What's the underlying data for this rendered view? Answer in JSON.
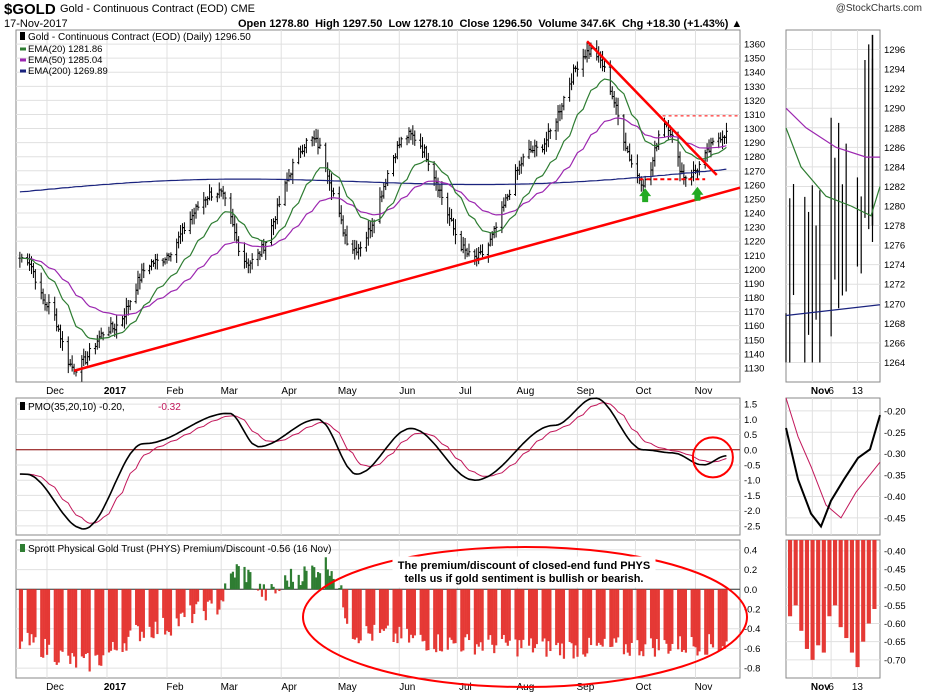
{
  "header": {
    "symbol": "$GOLD",
    "name": "Gold - Continuous Contract (EOD)",
    "exchange": "CME",
    "date": "17-Nov-2017",
    "open_label": "Open",
    "open": "1278.80",
    "high_label": "High",
    "high": "1297.50",
    "low_label": "Low",
    "low": "1278.10",
    "close_label": "Close",
    "close": "1296.50",
    "volume_label": "Volume",
    "volume": "347.6K",
    "chg_label": "Chg",
    "chg": "+18.30 (+1.43%)",
    "logo": "@StockCharts.com"
  },
  "colors": {
    "price": "#000000",
    "ema20": "#2e7d32",
    "ema50": "#9c27b0",
    "ema200": "#1a237e",
    "trendline": "#ff0000",
    "pmo_signal": "#c2185b",
    "premium_neg": "#e53935",
    "premium_pos": "#2e7d32",
    "arrow": "#22aa22",
    "grid": "#e0e0e0"
  },
  "chart_data": [
    {
      "type": "ohlc",
      "panel": "price",
      "title": "Gold - Continuous Contract (EOD) (Daily) 1296.50",
      "legend": [
        {
          "name": "EMA(20)",
          "value": "1281.86",
          "color": "#2e7d32"
        },
        {
          "name": "EMA(50)",
          "value": "1285.04",
          "color": "#9c27b0"
        },
        {
          "name": "EMA(200)",
          "value": "1269.89",
          "color": "#1a237e"
        }
      ],
      "ylim": [
        1120,
        1370
      ],
      "yticks": [
        1130,
        1140,
        1150,
        1160,
        1170,
        1180,
        1190,
        1200,
        1210,
        1220,
        1230,
        1240,
        1250,
        1260,
        1270,
        1280,
        1290,
        1300,
        1310,
        1320,
        1330,
        1340,
        1350,
        1360
      ],
      "xlabels": [
        "Dec",
        "2017",
        "Feb",
        "Mar",
        "Apr",
        "May",
        "Jun",
        "Jul",
        "Aug",
        "Sep",
        "Oct",
        "Nov"
      ],
      "key_points": [
        {
          "date": "2016-11-20",
          "close": 1208
        },
        {
          "date": "2016-12-01",
          "close": 1175
        },
        {
          "date": "2016-12-15",
          "close": 1130
        },
        {
          "date": "2017-01-03",
          "close": 1158
        },
        {
          "date": "2017-01-25",
          "close": 1205
        },
        {
          "date": "2017-02-27",
          "close": 1255
        },
        {
          "date": "2017-03-15",
          "close": 1205
        },
        {
          "date": "2017-04-17",
          "close": 1292
        },
        {
          "date": "2017-05-09",
          "close": 1215
        },
        {
          "date": "2017-06-06",
          "close": 1295
        },
        {
          "date": "2017-07-10",
          "close": 1208
        },
        {
          "date": "2017-08-10",
          "close": 1285
        },
        {
          "date": "2017-09-08",
          "close": 1355
        },
        {
          "date": "2017-10-06",
          "close": 1262
        },
        {
          "date": "2017-10-16",
          "close": 1305
        },
        {
          "date": "2017-10-27",
          "close": 1266
        },
        {
          "date": "2017-11-17",
          "close": 1296.5
        }
      ]
    },
    {
      "type": "ohlc",
      "panel": "price-zoom",
      "ylim": [
        1262,
        1298
      ],
      "yticks": [
        1264,
        1266,
        1268,
        1270,
        1272,
        1274,
        1276,
        1278,
        1280,
        1282,
        1284,
        1286,
        1288,
        1290,
        1292,
        1294,
        1296
      ],
      "xlabels": [
        "Nov",
        "6",
        "13"
      ]
    },
    {
      "type": "line",
      "panel": "pmo",
      "title": "PMO(35,20,10)",
      "value1": "-0.20",
      "value2": "-0.32",
      "ylim": [
        -2.8,
        1.7
      ],
      "yticks": [
        "1.5",
        "1.0",
        "0.5",
        "0.0",
        "-0.5",
        "-1.0",
        "-1.5",
        "-2.0",
        "-2.5"
      ],
      "key_points": [
        {
          "date": "2016-11-20",
          "pmo": -0.8
        },
        {
          "date": "2016-12-20",
          "pmo": -2.6
        },
        {
          "date": "2017-01-20",
          "pmo": 0.2
        },
        {
          "date": "2017-03-05",
          "pmo": 1.2
        },
        {
          "date": "2017-03-20",
          "pmo": 0.1
        },
        {
          "date": "2017-04-20",
          "pmo": 1.0
        },
        {
          "date": "2017-05-10",
          "pmo": -0.8
        },
        {
          "date": "2017-06-07",
          "pmo": 0.7
        },
        {
          "date": "2017-07-10",
          "pmo": -1.0
        },
        {
          "date": "2017-08-20",
          "pmo": 0.8
        },
        {
          "date": "2017-09-10",
          "pmo": 1.7
        },
        {
          "date": "2017-10-05",
          "pmo": 0.0
        },
        {
          "date": "2017-10-20",
          "pmo": -0.1
        },
        {
          "date": "2017-11-05",
          "pmo": -0.5
        },
        {
          "date": "2017-11-17",
          "pmo": -0.2
        }
      ],
      "zoom_ylim": [
        -0.49,
        -0.17
      ],
      "zoom_yticks": [
        "-0.20",
        "-0.25",
        "-0.30",
        "-0.35",
        "-0.40",
        "-0.45"
      ]
    },
    {
      "type": "bar",
      "panel": "premium",
      "title": "Sprott Physical Gold Trust (PHYS) Premium/Discount",
      "value": "-0.56 (16 Nov)",
      "ylim": [
        -0.9,
        0.5
      ],
      "yticks": [
        "0.4",
        "0.2",
        "0.0",
        "-0.2",
        "-0.4",
        "-0.6",
        "-0.8"
      ],
      "key_points": [
        {
          "date": "2016-11-20",
          "value": -0.55
        },
        {
          "date": "2016-12-20",
          "value": -0.75
        },
        {
          "date": "2017-01-25",
          "value": -0.4
        },
        {
          "date": "2017-02-25",
          "value": -0.2
        },
        {
          "date": "2017-03-10",
          "value": 0.2
        },
        {
          "date": "2017-03-25",
          "value": -0.05
        },
        {
          "date": "2017-04-10",
          "value": 0.15
        },
        {
          "date": "2017-04-25",
          "value": 0.25
        },
        {
          "date": "2017-05-10",
          "value": -0.45
        },
        {
          "date": "2017-07-01",
          "value": -0.55
        },
        {
          "date": "2017-09-01",
          "value": -0.6
        },
        {
          "date": "2017-11-16",
          "value": -0.56
        }
      ],
      "annotation": "The premium/discount of closed-end fund PHYS tells us if gold sentiment is bullish or bearish.",
      "zoom_ylim": [
        -0.75,
        -0.37
      ],
      "zoom_yticks": [
        "-0.40",
        "-0.45",
        "-0.50",
        "-0.55",
        "-0.60",
        "-0.65",
        "-0.70"
      ]
    }
  ]
}
